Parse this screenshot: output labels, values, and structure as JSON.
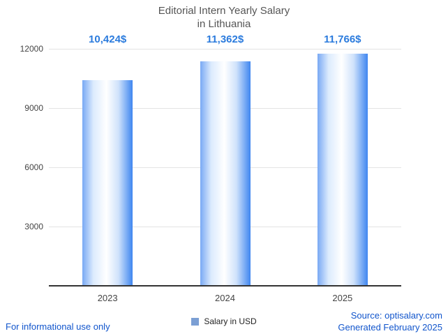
{
  "title": {
    "line1": "Editorial Intern Yearly Salary",
    "line2": "in Lithuania"
  },
  "legend": {
    "label": "Salary in USD"
  },
  "footer": {
    "left": "For informational use only",
    "source": "Source: optisalary.com",
    "generated": "Generated February 2025"
  },
  "chart_data": {
    "type": "bar",
    "title": "Editorial Intern Yearly Salary in Lithuania",
    "categories": [
      "2023",
      "2024",
      "2025"
    ],
    "values": [
      10424,
      11362,
      11766
    ],
    "value_labels": [
      "10,424$",
      "11,362$",
      "11,766$"
    ],
    "series_name": "Salary in USD",
    "xlabel": "",
    "ylabel": "",
    "ylim": [
      0,
      12000
    ],
    "yticks": [
      3000,
      6000,
      9000,
      12000
    ],
    "grid": true,
    "legend_position": "bottom",
    "colors": {
      "bar_left": "#79a9f4",
      "bar_right": "#3f86f0",
      "label": "#2b7bdd",
      "footer": "#1155cc",
      "grid": "#e3e3e3",
      "axis": "#333333",
      "title": "#555555",
      "tick": "#444444",
      "legend_marker": "#7b9fd4"
    }
  }
}
